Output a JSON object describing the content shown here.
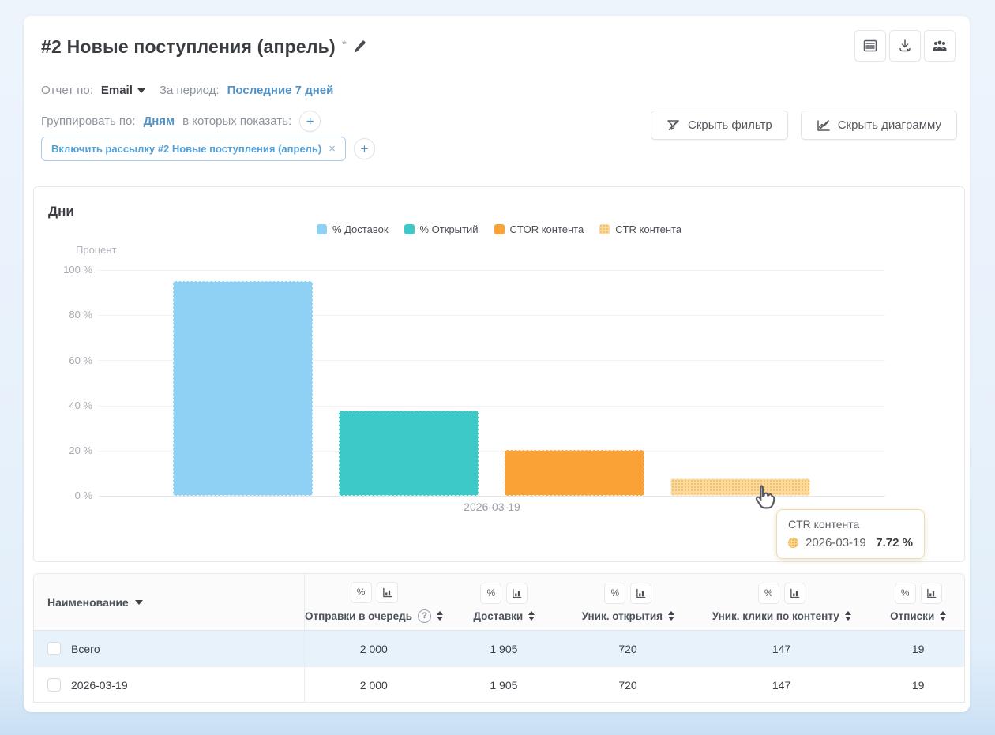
{
  "header": {
    "title": "#2 Новые поступления (апрель)",
    "unsaved_marker": "*",
    "toolbar_icons": [
      "table-view-icon",
      "download-icon",
      "audience-icon"
    ]
  },
  "filters": {
    "report_by_label": "Отчет по:",
    "report_by_value": "Email",
    "period_label": "За период:",
    "period_value": "Последние 7 дней",
    "group_by_label": "Группировать по:",
    "group_by_value": "Дням",
    "show_in_label": "в которых показать:",
    "chip_label": "Включить рассылку #2 Новые поступления (апрель)",
    "chip_remove": "×",
    "add_button": "+"
  },
  "actions": {
    "hide_filter": "Скрыть фильтр",
    "hide_chart": "Скрыть диаграмму"
  },
  "chart": {
    "title": "Дни",
    "ylabel": "Процент",
    "yticks": [
      "100 %",
      "80 %",
      "60 %",
      "40 %",
      "20 %",
      "0 %"
    ],
    "xlabel": "2026-03-19"
  },
  "chart_data": {
    "type": "bar",
    "title": "Дни",
    "xlabel": "",
    "ylabel": "Процент",
    "ylim": [
      0,
      100
    ],
    "grid": true,
    "legend_position": "top",
    "categories": [
      "2026-03-19"
    ],
    "series": [
      {
        "name": "% Доставок",
        "color": "#8ed1f4",
        "values": [
          95.25
        ]
      },
      {
        "name": "% Открытий",
        "color": "#3ec9c9",
        "values": [
          37.8
        ]
      },
      {
        "name": "CTOR контента",
        "color": "#fba237",
        "values": [
          20.42
        ]
      },
      {
        "name": "CTR контента",
        "color": "#fcdc9e",
        "values": [
          7.72
        ]
      }
    ]
  },
  "tooltip": {
    "series": "CTR контента",
    "date": "2026-03-19",
    "value": "7.72 %"
  },
  "table": {
    "name_column": "Наименование",
    "columns": [
      {
        "label": "Отправки в очередь",
        "help": "?"
      },
      {
        "label": "Доставки"
      },
      {
        "label": "Уник. открытия"
      },
      {
        "label": "Уник. клики по контенту"
      },
      {
        "label": "Отписки"
      }
    ],
    "header_icons": [
      "percent-icon",
      "bar-chart-icon"
    ],
    "rows": [
      {
        "name": "Всего",
        "is_total": true,
        "values": [
          "2 000",
          "1 905",
          "720",
          "147",
          "19"
        ]
      },
      {
        "name": "2026-03-19",
        "is_total": false,
        "values": [
          "2 000",
          "1 905",
          "720",
          "147",
          "19"
        ]
      }
    ]
  },
  "colors": {
    "accent_blue": "#4f93c8",
    "total_row_highlight": "#e8f2fb",
    "tooltip_border": "#f4dba6"
  }
}
